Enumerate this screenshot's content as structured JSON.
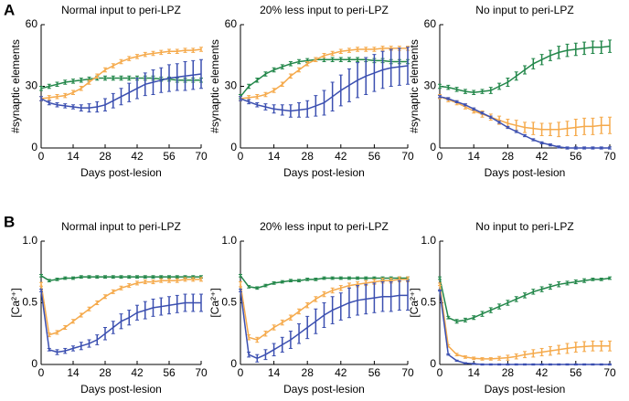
{
  "panels": [
    "A",
    "B"
  ],
  "chart_data": [
    {
      "type": "line",
      "title": "Normal input to peri-LPZ",
      "xlabel": "Days post-lesion",
      "ylabel": "#synaptic elements",
      "x": [
        0,
        3.5,
        7,
        10.5,
        14,
        17.5,
        21,
        24.5,
        28,
        31.5,
        35,
        38.5,
        42,
        45.5,
        49,
        52.5,
        56,
        59.5,
        63,
        66.5,
        70
      ],
      "xlim": [
        0,
        70
      ],
      "xticks": [
        0,
        14,
        28,
        42,
        56,
        70
      ],
      "ylim": [
        0,
        60
      ],
      "yticks": [
        0,
        30,
        60
      ],
      "series": [
        {
          "color": "#23874a",
          "values": [
            29,
            30,
            31,
            32,
            32.5,
            33,
            33.5,
            34,
            34,
            34,
            34,
            34,
            34,
            34,
            34,
            33.5,
            33.5,
            33,
            33,
            33,
            33
          ],
          "errors": [
            1,
            1,
            1,
            1,
            1,
            1,
            1,
            1,
            1,
            1,
            1,
            1,
            1,
            1,
            1,
            1,
            1,
            1,
            1,
            1,
            1
          ]
        },
        {
          "color": "#f5aa4c",
          "values": [
            24,
            24.5,
            25,
            25.5,
            27,
            29,
            32,
            35,
            38,
            40,
            42,
            43.5,
            44.5,
            45.5,
            46,
            46.5,
            47,
            47,
            47.5,
            47.5,
            48
          ],
          "errors": [
            1,
            1,
            1,
            1,
            1,
            1,
            1,
            1,
            1,
            1,
            1,
            1,
            1,
            1,
            1,
            1,
            1,
            1,
            1,
            1,
            1
          ]
        },
        {
          "color": "#3b4fb0",
          "values": [
            24,
            22,
            21,
            20.5,
            20,
            19.5,
            19.5,
            20,
            21,
            23,
            25,
            27,
            29,
            31,
            32,
            33,
            34,
            34.5,
            35,
            35.5,
            36
          ],
          "errors": [
            1,
            1,
            1,
            1,
            1,
            1.5,
            2,
            2.5,
            3,
            3.5,
            4,
            4.5,
            5,
            5.5,
            6,
            6,
            6.5,
            6.5,
            7,
            7,
            7
          ]
        }
      ]
    },
    {
      "type": "line",
      "title": "20% less input to peri-LPZ",
      "xlabel": "Days post-lesion",
      "ylabel": "#synaptic elements",
      "x": [
        0,
        3.5,
        7,
        10.5,
        14,
        17.5,
        21,
        24.5,
        28,
        31.5,
        35,
        38.5,
        42,
        45.5,
        49,
        52.5,
        56,
        59.5,
        63,
        66.5,
        70
      ],
      "xlim": [
        0,
        70
      ],
      "xticks": [
        0,
        14,
        28,
        42,
        56,
        70
      ],
      "ylim": [
        0,
        60
      ],
      "yticks": [
        0,
        30,
        60
      ],
      "series": [
        {
          "color": "#23874a",
          "values": [
            25,
            30,
            33,
            36,
            38,
            39.5,
            41,
            42,
            42.5,
            43,
            43,
            43,
            43,
            43,
            43,
            43,
            42.5,
            42.5,
            42,
            42,
            42
          ],
          "errors": [
            1,
            1,
            1,
            1,
            1,
            1,
            1,
            1,
            1,
            1,
            1,
            1,
            1,
            1,
            1,
            1,
            1,
            1,
            1,
            1,
            1
          ]
        },
        {
          "color": "#f5aa4c",
          "values": [
            24,
            24.5,
            25,
            26,
            28,
            31,
            35,
            38,
            41,
            43,
            45,
            46,
            47,
            47.5,
            48,
            48,
            48,
            48.5,
            48.5,
            48.5,
            48.5
          ],
          "errors": [
            1,
            1,
            1,
            1,
            1,
            1,
            1,
            1,
            1,
            1,
            1,
            1,
            1,
            1,
            1,
            1,
            1,
            1,
            1,
            1,
            1
          ]
        },
        {
          "color": "#3b4fb0",
          "values": [
            24,
            22.5,
            21,
            20,
            19,
            18.5,
            18,
            18.5,
            19,
            20.5,
            22,
            25,
            28,
            30.5,
            33,
            35,
            36.5,
            38,
            39,
            39.5,
            40
          ],
          "errors": [
            1,
            1,
            1,
            1.5,
            2,
            2.5,
            3,
            3.5,
            4,
            5,
            6,
            7,
            7.5,
            8,
            8.5,
            9,
            9,
            9,
            9,
            9,
            9
          ]
        }
      ]
    },
    {
      "type": "line",
      "title": "No input to peri-LPZ",
      "xlabel": "Days post-lesion",
      "ylabel": "#synaptic elements",
      "x": [
        0,
        3.5,
        7,
        10.5,
        14,
        17.5,
        21,
        24.5,
        28,
        31.5,
        35,
        38.5,
        42,
        45.5,
        49,
        52.5,
        56,
        59.5,
        63,
        66.5,
        70
      ],
      "xlim": [
        0,
        70
      ],
      "xticks": [
        0,
        14,
        28,
        42,
        56,
        70
      ],
      "ylim": [
        0,
        60
      ],
      "yticks": [
        0,
        30,
        60
      ],
      "series": [
        {
          "color": "#23874a",
          "values": [
            30,
            29.5,
            28.5,
            27.5,
            27,
            27.5,
            28,
            30,
            32,
            35,
            38,
            41,
            43,
            45,
            46.5,
            47.5,
            48,
            48.5,
            49,
            49,
            49.5
          ],
          "errors": [
            1,
            1,
            1,
            1,
            1,
            1,
            1.5,
            1.5,
            2,
            2,
            2,
            2.5,
            2.5,
            2.5,
            3,
            3,
            3,
            3,
            3,
            3,
            3
          ]
        },
        {
          "color": "#f5aa4c",
          "values": [
            25,
            23.5,
            22,
            20,
            18,
            16.5,
            15,
            13.5,
            12,
            11,
            10,
            9.5,
            9,
            9,
            9,
            9.5,
            10,
            10.5,
            10.5,
            11,
            11
          ],
          "errors": [
            1,
            1,
            1,
            1,
            1,
            1.5,
            1.5,
            2,
            2,
            2.5,
            2.5,
            3,
            3,
            3,
            3.5,
            3.5,
            4,
            4,
            4,
            4,
            4
          ]
        },
        {
          "color": "#3b4fb0",
          "values": [
            25,
            24,
            22.5,
            21,
            19,
            17,
            15,
            12.5,
            10,
            8,
            6,
            4,
            2.5,
            1.5,
            0.5,
            0,
            0,
            0,
            0,
            0,
            0
          ],
          "errors": [
            0.5,
            0.5,
            0.5,
            0.5,
            0.5,
            0.5,
            0.5,
            0.5,
            0.5,
            0.5,
            0.5,
            0.5,
            0.5,
            0.5,
            0.5,
            0.5,
            0.5,
            0.5,
            0.5,
            0.5,
            0.5
          ]
        }
      ]
    },
    {
      "type": "line",
      "title": "Normal input to peri-LPZ",
      "xlabel": "Days post-lesion",
      "ylabel": "[Ca²⁺]",
      "x": [
        0,
        3.5,
        7,
        10.5,
        14,
        17.5,
        21,
        24.5,
        28,
        31.5,
        35,
        38.5,
        42,
        45.5,
        49,
        52.5,
        56,
        59.5,
        63,
        66.5,
        70
      ],
      "xlim": [
        0,
        70
      ],
      "xticks": [
        0,
        14,
        28,
        42,
        56,
        70
      ],
      "ylim": [
        0,
        1
      ],
      "yticks": [
        0,
        0.5,
        {
          "value": 1,
          "label": "1.0"
        }
      ],
      "series": [
        {
          "color": "#23874a",
          "values": [
            0.72,
            0.68,
            0.69,
            0.7,
            0.7,
            0.71,
            0.71,
            0.71,
            0.71,
            0.71,
            0.71,
            0.71,
            0.71,
            0.71,
            0.71,
            0.71,
            0.71,
            0.71,
            0.71,
            0.71,
            0.71
          ],
          "errors": [
            0.01,
            0.01,
            0.01,
            0.01,
            0.01,
            0.01,
            0.01,
            0.01,
            0.01,
            0.01,
            0.01,
            0.01,
            0.01,
            0.01,
            0.01,
            0.01,
            0.01,
            0.01,
            0.01,
            0.01,
            0.01
          ]
        },
        {
          "color": "#f5aa4c",
          "values": [
            0.65,
            0.24,
            0.26,
            0.3,
            0.35,
            0.4,
            0.45,
            0.5,
            0.55,
            0.59,
            0.62,
            0.64,
            0.66,
            0.67,
            0.67,
            0.68,
            0.68,
            0.68,
            0.69,
            0.69,
            0.69
          ],
          "errors": [
            0.015,
            0.015,
            0.015,
            0.015,
            0.015,
            0.015,
            0.015,
            0.015,
            0.015,
            0.015,
            0.015,
            0.015,
            0.015,
            0.015,
            0.015,
            0.015,
            0.015,
            0.015,
            0.015,
            0.015,
            0.015
          ]
        },
        {
          "color": "#3b4fb0",
          "values": [
            0.6,
            0.12,
            0.1,
            0.11,
            0.13,
            0.15,
            0.17,
            0.2,
            0.25,
            0.3,
            0.35,
            0.38,
            0.42,
            0.44,
            0.46,
            0.47,
            0.48,
            0.49,
            0.5,
            0.5,
            0.5
          ],
          "errors": [
            0.01,
            0.01,
            0.02,
            0.02,
            0.02,
            0.03,
            0.03,
            0.04,
            0.05,
            0.05,
            0.06,
            0.06,
            0.06,
            0.07,
            0.07,
            0.07,
            0.07,
            0.07,
            0.07,
            0.07,
            0.07
          ]
        }
      ]
    },
    {
      "type": "line",
      "title": "20% less input to peri-LPZ",
      "xlabel": "Days post-lesion",
      "ylabel": "[Ca²⁺]",
      "x": [
        0,
        3.5,
        7,
        10.5,
        14,
        17.5,
        21,
        24.5,
        28,
        31.5,
        35,
        38.5,
        42,
        45.5,
        49,
        52.5,
        56,
        59.5,
        63,
        66.5,
        70
      ],
      "xlim": [
        0,
        70
      ],
      "xticks": [
        0,
        14,
        28,
        42,
        56,
        70
      ],
      "ylim": [
        0,
        1
      ],
      "yticks": [
        0,
        0.5,
        {
          "value": 1,
          "label": "1.0"
        }
      ],
      "series": [
        {
          "color": "#23874a",
          "values": [
            0.72,
            0.63,
            0.62,
            0.64,
            0.66,
            0.67,
            0.68,
            0.68,
            0.69,
            0.69,
            0.7,
            0.7,
            0.7,
            0.7,
            0.7,
            0.7,
            0.7,
            0.7,
            0.7,
            0.7,
            0.7
          ],
          "errors": [
            0.01,
            0.01,
            0.01,
            0.01,
            0.01,
            0.01,
            0.01,
            0.01,
            0.01,
            0.01,
            0.01,
            0.01,
            0.01,
            0.01,
            0.01,
            0.01,
            0.01,
            0.01,
            0.01,
            0.01,
            0.01
          ]
        },
        {
          "color": "#f5aa4c",
          "values": [
            0.65,
            0.22,
            0.2,
            0.25,
            0.3,
            0.34,
            0.38,
            0.43,
            0.48,
            0.53,
            0.57,
            0.6,
            0.62,
            0.64,
            0.65,
            0.66,
            0.67,
            0.68,
            0.68,
            0.69,
            0.69
          ],
          "errors": [
            0.02,
            0.02,
            0.02,
            0.02,
            0.02,
            0.02,
            0.02,
            0.02,
            0.02,
            0.02,
            0.02,
            0.02,
            0.02,
            0.02,
            0.02,
            0.02,
            0.02,
            0.02,
            0.02,
            0.02,
            0.02
          ]
        },
        {
          "color": "#3b4fb0",
          "values": [
            0.6,
            0.08,
            0.05,
            0.08,
            0.12,
            0.16,
            0.2,
            0.25,
            0.3,
            0.35,
            0.4,
            0.44,
            0.47,
            0.5,
            0.52,
            0.53,
            0.54,
            0.55,
            0.55,
            0.56,
            0.56
          ],
          "errors": [
            0.01,
            0.02,
            0.03,
            0.04,
            0.05,
            0.06,
            0.07,
            0.08,
            0.09,
            0.1,
            0.1,
            0.11,
            0.11,
            0.12,
            0.12,
            0.12,
            0.12,
            0.12,
            0.12,
            0.12,
            0.12
          ]
        }
      ]
    },
    {
      "type": "line",
      "title": "No input to peri-LPZ",
      "xlabel": "Days post-lesion",
      "ylabel": "[Ca²⁺]",
      "x": [
        0,
        3.5,
        7,
        10.5,
        14,
        17.5,
        21,
        24.5,
        28,
        31.5,
        35,
        38.5,
        42,
        45.5,
        49,
        52.5,
        56,
        59.5,
        63,
        66.5,
        70
      ],
      "xlim": [
        0,
        70
      ],
      "xticks": [
        0,
        14,
        28,
        42,
        56,
        70
      ],
      "ylim": [
        0,
        1
      ],
      "yticks": [
        0,
        0.5,
        {
          "value": 1,
          "label": "1.0"
        }
      ],
      "series": [
        {
          "color": "#23874a",
          "values": [
            0.7,
            0.38,
            0.35,
            0.36,
            0.38,
            0.41,
            0.44,
            0.47,
            0.5,
            0.53,
            0.56,
            0.59,
            0.61,
            0.63,
            0.65,
            0.66,
            0.67,
            0.68,
            0.69,
            0.69,
            0.7
          ],
          "errors": [
            0.01,
            0.01,
            0.015,
            0.015,
            0.015,
            0.02,
            0.02,
            0.02,
            0.02,
            0.02,
            0.02,
            0.02,
            0.02,
            0.02,
            0.02,
            0.015,
            0.015,
            0.015,
            0.01,
            0.01,
            0.01
          ]
        },
        {
          "color": "#f5aa4c",
          "values": [
            0.65,
            0.15,
            0.08,
            0.06,
            0.05,
            0.045,
            0.045,
            0.05,
            0.055,
            0.065,
            0.08,
            0.09,
            0.1,
            0.11,
            0.12,
            0.13,
            0.14,
            0.145,
            0.15,
            0.15,
            0.15
          ],
          "errors": [
            0.01,
            0.01,
            0.01,
            0.01,
            0.01,
            0.01,
            0.01,
            0.015,
            0.02,
            0.02,
            0.025,
            0.03,
            0.03,
            0.035,
            0.035,
            0.04,
            0.04,
            0.04,
            0.04,
            0.04,
            0.04
          ]
        },
        {
          "color": "#3b4fb0",
          "values": [
            0.6,
            0.08,
            0.03,
            0.01,
            0.005,
            0,
            0,
            0,
            0,
            0,
            0,
            0,
            0,
            0,
            0,
            0,
            0,
            0,
            0,
            0,
            0
          ],
          "errors": [
            0.005,
            0.005,
            0.005,
            0.005,
            0.005,
            0.005,
            0.005,
            0.005,
            0.005,
            0.005,
            0.005,
            0.005,
            0.005,
            0.005,
            0.005,
            0.005,
            0.005,
            0.005,
            0.005,
            0.005,
            0.005
          ]
        }
      ]
    }
  ]
}
